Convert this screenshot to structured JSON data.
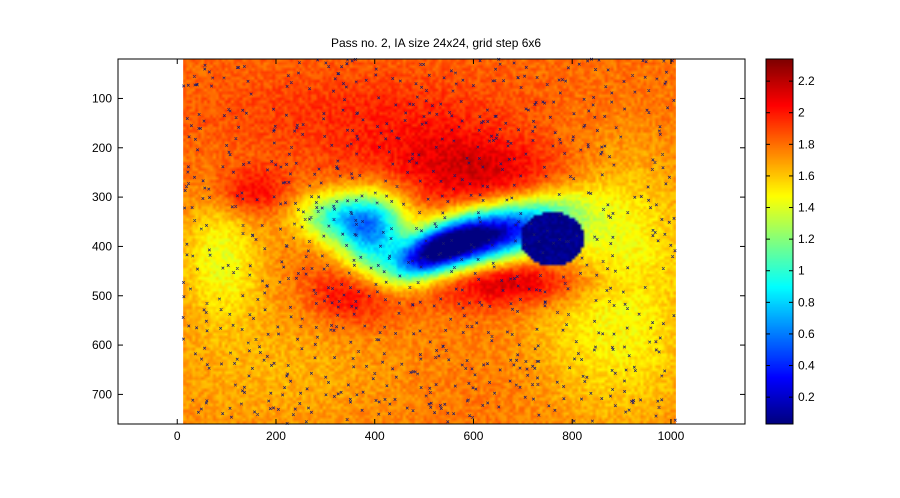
{
  "window": {
    "background": "#ffffff"
  },
  "chart_data": {
    "type": "heatmap",
    "title": "Pass no. 2, IA size 24x24, grid step 6x6",
    "xlabel": "",
    "ylabel": "",
    "xlim": [
      -120,
      1150
    ],
    "ylim": [
      760,
      20
    ],
    "y_axis_direction": "down",
    "image_extent": {
      "x": [
        12,
        1010
      ],
      "y": [
        20,
        760
      ]
    },
    "x_ticks": [
      0,
      200,
      400,
      600,
      800,
      1000
    ],
    "y_ticks": [
      100,
      200,
      300,
      400,
      500,
      600,
      700
    ],
    "x_tick_labels": [
      "0",
      "200",
      "400",
      "600",
      "800",
      "1000"
    ],
    "y_tick_labels": [
      "100",
      "200",
      "300",
      "400",
      "500",
      "600",
      "700"
    ],
    "colormap": "jet",
    "colorbar": {
      "range": [
        0.03,
        2.34
      ],
      "ticks": [
        0.2,
        0.4,
        0.6,
        0.8,
        1,
        1.2,
        1.4,
        1.6,
        1.8,
        2,
        2.2
      ],
      "tick_labels": [
        "0.2",
        "0.4",
        "0.6",
        "0.8",
        "1",
        "1.2",
        "1.4",
        "1.6",
        "1.8",
        "2",
        "2.2"
      ]
    },
    "field": {
      "background": 1.8,
      "features": [
        {
          "kind": "cylinder",
          "cx": 760,
          "cy": 385,
          "rx": 65,
          "ry": 55,
          "value": 0.05
        },
        {
          "kind": "blob",
          "cx": 630,
          "cy": 380,
          "sx": 110,
          "sy": 38,
          "tilt": -0.3,
          "amp": -1.6
        },
        {
          "kind": "blob",
          "cx": 520,
          "cy": 410,
          "sx": 70,
          "sy": 30,
          "tilt": -0.5,
          "amp": -1.1
        },
        {
          "kind": "blob",
          "cx": 395,
          "cy": 380,
          "sx": 45,
          "sy": 60,
          "tilt": 0.4,
          "amp": -0.9
        },
        {
          "kind": "blob",
          "cx": 330,
          "cy": 340,
          "sx": 60,
          "sy": 35,
          "tilt": 0.0,
          "amp": -0.8
        },
        {
          "kind": "blob",
          "cx": 680,
          "cy": 470,
          "sx": 130,
          "sy": 35,
          "tilt": 0.0,
          "amp": 0.45
        },
        {
          "kind": "blob",
          "cx": 620,
          "cy": 250,
          "sx": 150,
          "sy": 55,
          "tilt": 0.1,
          "amp": 0.35
        },
        {
          "kind": "blob",
          "cx": 360,
          "cy": 490,
          "sx": 60,
          "sy": 45,
          "tilt": 0.0,
          "amp": 0.4
        },
        {
          "kind": "blob",
          "cx": 150,
          "cy": 290,
          "sx": 50,
          "sy": 35,
          "tilt": 0.0,
          "amp": 0.3
        },
        {
          "kind": "blob",
          "cx": 400,
          "cy": 130,
          "sx": 240,
          "sy": 70,
          "tilt": 0.0,
          "amp": 0.15
        },
        {
          "kind": "blob",
          "cx": 90,
          "cy": 420,
          "sx": 60,
          "sy": 90,
          "tilt": 0.0,
          "amp": -0.35
        },
        {
          "kind": "blob",
          "cx": 880,
          "cy": 400,
          "sx": 120,
          "sy": 140,
          "tilt": 0.0,
          "amp": -0.35
        },
        {
          "kind": "blob",
          "cx": 200,
          "cy": 650,
          "sx": 200,
          "sy": 110,
          "tilt": 0.0,
          "amp": -0.15
        },
        {
          "kind": "blob",
          "cx": 900,
          "cy": 640,
          "sx": 120,
          "sy": 110,
          "tilt": 0.0,
          "amp": -0.2
        }
      ],
      "outlier_markers": {
        "symbol": "x",
        "color": "#1a1a6e",
        "count": 900
      }
    }
  }
}
